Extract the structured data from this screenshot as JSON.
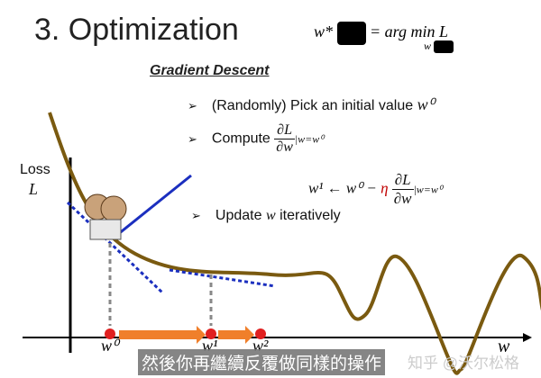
{
  "slide": {
    "title": "3. Optimization",
    "formula": {
      "lhs": "w*",
      "eq": "= arg min L",
      "sub": "w"
    },
    "heading": "Gradient Descent",
    "bullets": [
      {
        "text": "(Randomly) Pick an initial value ",
        "math": "w⁰"
      },
      {
        "text": "Compute ",
        "num": "∂L",
        "den": "∂w",
        "eval": "|w=w⁰"
      },
      {
        "text": "Update ",
        "math": "w",
        "after": " iteratively"
      }
    ],
    "update_rule": {
      "lhs": "w¹ ← w⁰ − ",
      "eta": "η",
      "num": "∂L",
      "den": "∂w",
      "eval": "|w=w⁰"
    },
    "axis": {
      "ylabel": "Loss",
      "ylabel2": "L",
      "xlabel": "w"
    },
    "points": [
      "w⁰",
      "w¹",
      "w²"
    ],
    "colors": {
      "curve": "#7a5a10",
      "tangent": "#1b2fbf",
      "arrow": "#f07f2a",
      "point": "#e02020",
      "eta": "#c00000"
    }
  },
  "subtitle": "然後你再繼續反覆做同樣的操作",
  "watermark": "知乎 @沃尔松格"
}
